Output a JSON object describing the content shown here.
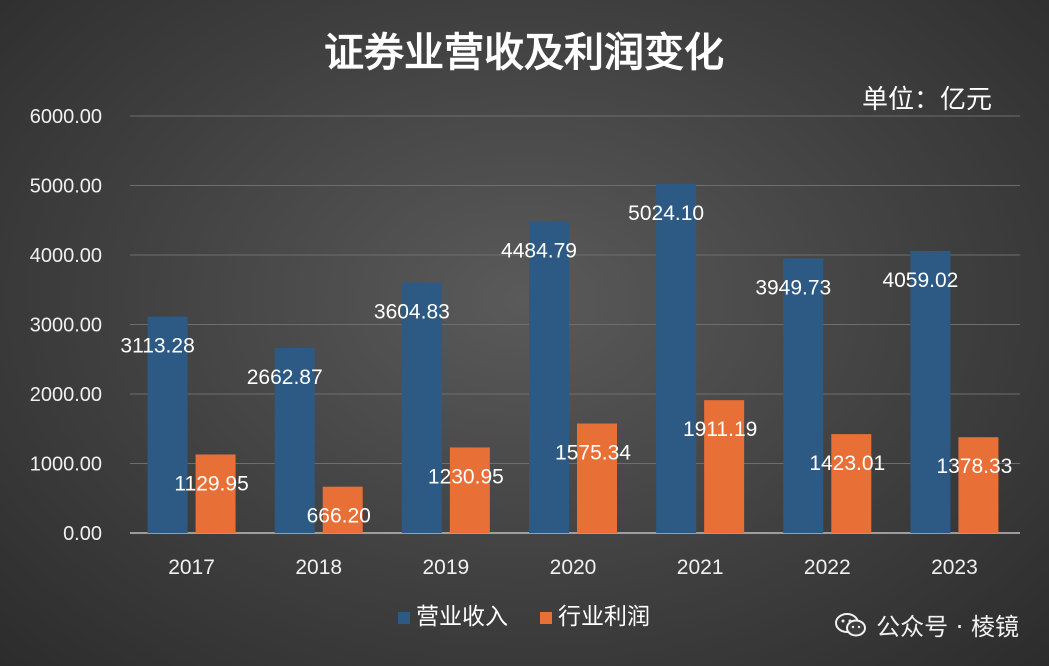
{
  "chart_data": {
    "type": "bar",
    "title": "证券业营收及利润变化",
    "unit_label": "单位：亿元",
    "categories": [
      "2017",
      "2018",
      "2019",
      "2020",
      "2021",
      "2022",
      "2023"
    ],
    "series": [
      {
        "name": "营业收入",
        "color": "#2d5a84",
        "values": [
          3113.28,
          2662.87,
          3604.83,
          4484.79,
          5024.1,
          3949.73,
          4059.02
        ],
        "labels": [
          "3113.28",
          "2662.87",
          "3604.83",
          "4484.79",
          "5024.10",
          "3949.73",
          "4059.02"
        ]
      },
      {
        "name": "行业利润",
        "color": "#e86f36",
        "values": [
          1129.95,
          666.2,
          1230.95,
          1575.34,
          1911.19,
          1423.01,
          1378.33
        ],
        "labels": [
          "1129.95",
          "666.20",
          "1230.95",
          "1575.34",
          "1911.19",
          "1423.01",
          "1378.33"
        ]
      }
    ],
    "y_ticks": [
      "0.00",
      "1000.00",
      "2000.00",
      "3000.00",
      "4000.00",
      "5000.00",
      "6000.00"
    ],
    "ylim": [
      0,
      6000
    ],
    "grid": true,
    "legend_position": "bottom"
  },
  "watermark": {
    "text": "公众号 · 棱镜",
    "icon": "wechat-icon"
  }
}
